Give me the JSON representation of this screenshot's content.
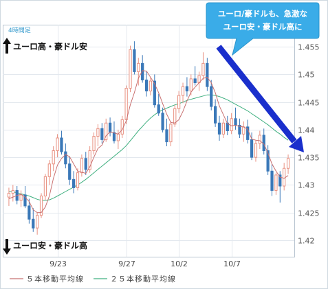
{
  "chart_data": {
    "type": "candlestick",
    "timeframe_label": "4時間足",
    "y_ticks": [
      1.42,
      1.425,
      1.43,
      1.435,
      1.44,
      1.445,
      1.45,
      1.455
    ],
    "y_tick_labels": [
      "1.42",
      "1.425",
      "1.43",
      "1.435",
      "1.44",
      "1.445",
      "1.45",
      "1.455"
    ],
    "ylim": [
      1.417,
      1.459
    ],
    "x_tick_labels": [
      {
        "index": 12,
        "label": "9/23"
      },
      {
        "index": 29,
        "label": "9/27"
      },
      {
        "index": 42,
        "label": "10/2"
      },
      {
        "index": 55,
        "label": "10/7"
      }
    ],
    "grid": true,
    "colors": {
      "up": "#e89080",
      "down": "#3a78b8",
      "ma5": "#c87070",
      "ma25": "#40b080",
      "callout_bg": "#3aace8",
      "arrow": "#1a2fcc"
    },
    "legend": [
      {
        "name": "５本移動平均線",
        "color": "#c87070"
      },
      {
        "name": "２５本移動平均線",
        "color": "#40b080"
      }
    ],
    "annotations": {
      "top_note": "ユーロ高・豪ドル安",
      "bottom_note": "ユーロ安・豪ドル高",
      "callout_line1": "ユーロ/豪ドルも、急激な",
      "callout_line2": "ユーロ安・豪ドル高に"
    },
    "candles": [
      [
        1.4278,
        1.4295,
        1.4262,
        1.4285
      ],
      [
        1.4285,
        1.43,
        1.427,
        1.429
      ],
      [
        1.429,
        1.4298,
        1.4265,
        1.4272
      ],
      [
        1.4272,
        1.429,
        1.426,
        1.4282
      ],
      [
        1.4282,
        1.4298,
        1.4258,
        1.4262
      ],
      [
        1.4262,
        1.4275,
        1.423,
        1.4238
      ],
      [
        1.4238,
        1.4258,
        1.4215,
        1.4222
      ],
      [
        1.4222,
        1.425,
        1.421,
        1.4245
      ],
      [
        1.4245,
        1.4285,
        1.424,
        1.428
      ],
      [
        1.428,
        1.432,
        1.4272,
        1.4315
      ],
      [
        1.4315,
        1.4345,
        1.43,
        1.4338
      ],
      [
        1.4338,
        1.437,
        1.4325,
        1.4362
      ],
      [
        1.4362,
        1.4392,
        1.435,
        1.4385
      ],
      [
        1.4385,
        1.4398,
        1.4355,
        1.436
      ],
      [
        1.436,
        1.4375,
        1.433,
        1.4338
      ],
      [
        1.4338,
        1.4352,
        1.43,
        1.431
      ],
      [
        1.431,
        1.4325,
        1.4285,
        1.4295
      ],
      [
        1.4295,
        1.433,
        1.429,
        1.4322
      ],
      [
        1.4322,
        1.4355,
        1.4315,
        1.4348
      ],
      [
        1.4348,
        1.436,
        1.4318,
        1.4328
      ],
      [
        1.4328,
        1.437,
        1.4322,
        1.4362
      ],
      [
        1.4362,
        1.4395,
        1.4355,
        1.4388
      ],
      [
        1.4388,
        1.441,
        1.437,
        1.4402
      ],
      [
        1.4402,
        1.4412,
        1.4375,
        1.4382
      ],
      [
        1.4382,
        1.442,
        1.4378,
        1.4412
      ],
      [
        1.4412,
        1.4422,
        1.4388,
        1.4395
      ],
      [
        1.4395,
        1.4415,
        1.4375,
        1.438
      ],
      [
        1.438,
        1.44,
        1.4365,
        1.4392
      ],
      [
        1.4392,
        1.4425,
        1.4385,
        1.4418
      ],
      [
        1.4418,
        1.448,
        1.441,
        1.4475
      ],
      [
        1.4475,
        1.4552,
        1.4468,
        1.4545
      ],
      [
        1.4545,
        1.456,
        1.45,
        1.4505
      ],
      [
        1.4505,
        1.453,
        1.448,
        1.452
      ],
      [
        1.452,
        1.4535,
        1.4485,
        1.449
      ],
      [
        1.449,
        1.4505,
        1.446,
        1.447
      ],
      [
        1.447,
        1.4495,
        1.4462,
        1.4488
      ],
      [
        1.4488,
        1.45,
        1.444,
        1.4445
      ],
      [
        1.4445,
        1.4465,
        1.4425,
        1.443
      ],
      [
        1.443,
        1.444,
        1.4395,
        1.44
      ],
      [
        1.44,
        1.442,
        1.437,
        1.4378
      ],
      [
        1.4378,
        1.4415,
        1.437,
        1.441
      ],
      [
        1.441,
        1.4445,
        1.4405,
        1.4438
      ],
      [
        1.4438,
        1.447,
        1.443,
        1.4462
      ],
      [
        1.4462,
        1.4485,
        1.4448,
        1.4478
      ],
      [
        1.4478,
        1.4495,
        1.446,
        1.447
      ],
      [
        1.447,
        1.45,
        1.4462,
        1.4492
      ],
      [
        1.4492,
        1.4515,
        1.448,
        1.4485
      ],
      [
        1.4485,
        1.4505,
        1.447,
        1.4498
      ],
      [
        1.4498,
        1.454,
        1.449,
        1.452
      ],
      [
        1.452,
        1.453,
        1.447,
        1.4478
      ],
      [
        1.4478,
        1.449,
        1.4435,
        1.4442
      ],
      [
        1.4442,
        1.4455,
        1.4405,
        1.4412
      ],
      [
        1.4412,
        1.4425,
        1.438,
        1.4392
      ],
      [
        1.4392,
        1.442,
        1.4385,
        1.4412
      ],
      [
        1.4412,
        1.4425,
        1.439,
        1.4398
      ],
      [
        1.4398,
        1.443,
        1.4392,
        1.442
      ],
      [
        1.442,
        1.444,
        1.44,
        1.4408
      ],
      [
        1.4408,
        1.442,
        1.4385,
        1.4392
      ],
      [
        1.4392,
        1.4415,
        1.4378,
        1.4405
      ],
      [
        1.4405,
        1.4418,
        1.4375,
        1.4382
      ],
      [
        1.4382,
        1.4395,
        1.4345,
        1.435
      ],
      [
        1.435,
        1.438,
        1.4342,
        1.4375
      ],
      [
        1.4375,
        1.4398,
        1.4365,
        1.439
      ],
      [
        1.439,
        1.4402,
        1.4355,
        1.4362
      ],
      [
        1.4362,
        1.4372,
        1.4318,
        1.4325
      ],
      [
        1.4325,
        1.4338,
        1.428,
        1.429
      ],
      [
        1.429,
        1.4322,
        1.4282,
        1.4318
      ],
      [
        1.4318,
        1.4325,
        1.4268,
        1.4298
      ],
      [
        1.4298,
        1.434,
        1.429,
        1.433
      ],
      [
        1.433,
        1.4355,
        1.432,
        1.4348
      ]
    ],
    "ma5": [
      1.4275,
      1.4278,
      1.4281,
      1.4283,
      1.4278,
      1.427,
      1.4255,
      1.425,
      1.425,
      1.426,
      1.428,
      1.4312,
      1.4336,
      1.4348,
      1.4355,
      1.4351,
      1.4338,
      1.4325,
      1.4323,
      1.4321,
      1.4333,
      1.435,
      1.4366,
      1.4372,
      1.4389,
      1.4396,
      1.4394,
      1.4392,
      1.44,
      1.4416,
      1.4445,
      1.4467,
      1.4493,
      1.4507,
      1.4506,
      1.4495,
      1.4483,
      1.4467,
      1.4447,
      1.4428,
      1.4413,
      1.4412,
      1.4418,
      1.4433,
      1.4452,
      1.4468,
      1.4477,
      1.4485,
      1.4493,
      1.4495,
      1.4485,
      1.4467,
      1.4443,
      1.4427,
      1.4411,
      1.4407,
      1.4408,
      1.4406,
      1.4405,
      1.4401,
      1.4383,
      1.4381,
      1.438,
      1.4374,
      1.4358,
      1.4338,
      1.4325,
      1.4314,
      1.4312,
      1.4317
    ],
    "ma25": [
      1.4288,
      1.4287,
      1.4286,
      1.4284,
      1.4282,
      1.428,
      1.4277,
      1.4274,
      1.4272,
      1.4272,
      1.4273,
      1.4276,
      1.428,
      1.4284,
      1.4288,
      1.4292,
      1.4296,
      1.43,
      1.4305,
      1.431,
      1.4316,
      1.4322,
      1.4328,
      1.4334,
      1.434,
      1.4346,
      1.4352,
      1.4358,
      1.4364,
      1.4371,
      1.438,
      1.4389,
      1.4398,
      1.4406,
      1.4414,
      1.4421,
      1.4427,
      1.4432,
      1.4436,
      1.4439,
      1.4442,
      1.4445,
      1.4447,
      1.445,
      1.4453,
      1.4455,
      1.4457,
      1.4459,
      1.4461,
      1.4463,
      1.4463,
      1.4462,
      1.446,
      1.4457,
      1.4454,
      1.445,
      1.4446,
      1.4442,
      1.4438,
      1.4434,
      1.4429,
      1.4424,
      1.4419,
      1.4414,
      1.4409,
      1.4403,
      1.4397,
      1.4392,
      1.4386,
      1.4381
    ]
  }
}
